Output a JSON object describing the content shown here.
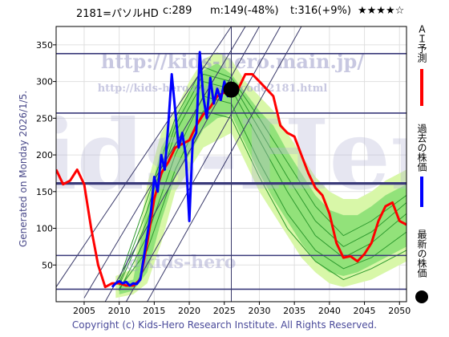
{
  "header": {
    "code_name": "2181=パソルHD",
    "current": "c:289",
    "min": "m:149(-48%)",
    "target": "t:316(+9%)",
    "stars": "★★★★☆"
  },
  "y_axis_label": "Generated on Monday 2026/1/5.",
  "footer": "Copyright (c) Kids-Hero Research Institute. All Rights Reserved.",
  "watermarks": {
    "main_url": "http://kids-hero.main.jp/",
    "code_url": "http://kids-hero.main.jp/code2181.html",
    "big_text": "Kids-Hero",
    "bottom_text": "@kids-hero"
  },
  "legend": [
    {
      "label": "ＡＩ予測",
      "color": "#ff0000"
    },
    {
      "label": "過去の株価",
      "color": "#0000ff"
    },
    {
      "label": "最新の株価",
      "color": "#000000"
    }
  ],
  "chart_data": {
    "type": "line",
    "title": "",
    "xlabel": "",
    "ylabel": "",
    "xlim": [
      2001,
      2051
    ],
    "ylim": [
      0,
      375
    ],
    "x_ticks": [
      2005,
      2010,
      2015,
      2020,
      2025,
      2030,
      2035,
      2040,
      2045,
      2050
    ],
    "y_ticks": [
      0,
      50,
      100,
      150,
      200,
      250,
      300,
      350
    ],
    "horizontal_lines": [
      17,
      63,
      162,
      257,
      338
    ],
    "horizontal_line_bold": 161,
    "vertical_line_x": 2026,
    "latest_point": {
      "x": 2026,
      "y": 289
    },
    "band_outer": [
      [
        2009.5,
        35,
        5
      ],
      [
        2012,
        45,
        10
      ],
      [
        2014,
        160,
        25
      ],
      [
        2016,
        230,
        80
      ],
      [
        2018,
        260,
        150
      ],
      [
        2020,
        300,
        180
      ],
      [
        2022,
        330,
        210
      ],
      [
        2024,
        340,
        220
      ],
      [
        2026,
        330,
        230
      ],
      [
        2028,
        300,
        190
      ],
      [
        2030,
        280,
        150
      ],
      [
        2032,
        260,
        120
      ],
      [
        2034,
        230,
        90
      ],
      [
        2036,
        200,
        60
      ],
      [
        2038,
        170,
        40
      ],
      [
        2040,
        150,
        25
      ],
      [
        2042,
        140,
        20
      ],
      [
        2044,
        140,
        25
      ],
      [
        2046,
        150,
        30
      ],
      [
        2048,
        165,
        40
      ],
      [
        2051,
        180,
        55
      ]
    ],
    "band_inner": [
      [
        2010,
        25,
        10
      ],
      [
        2012,
        30,
        15
      ],
      [
        2014,
        130,
        40
      ],
      [
        2016,
        210,
        110
      ],
      [
        2018,
        245,
        170
      ],
      [
        2020,
        285,
        200
      ],
      [
        2022,
        315,
        235
      ],
      [
        2024,
        325,
        250
      ],
      [
        2026,
        310,
        255
      ],
      [
        2028,
        285,
        215
      ],
      [
        2030,
        260,
        175
      ],
      [
        2032,
        240,
        140
      ],
      [
        2034,
        205,
        110
      ],
      [
        2036,
        175,
        80
      ],
      [
        2038,
        145,
        55
      ],
      [
        2040,
        125,
        40
      ],
      [
        2042,
        118,
        35
      ],
      [
        2044,
        118,
        40
      ],
      [
        2046,
        130,
        50
      ],
      [
        2048,
        145,
        60
      ],
      [
        2051,
        160,
        75
      ]
    ],
    "series": [
      {
        "name": "ＡＩ予測",
        "color": "#ff0000",
        "x": [
          2001,
          2002,
          2003,
          2004,
          2005,
          2006,
          2007,
          2008,
          2009,
          2010,
          2011,
          2012,
          2013,
          2014,
          2015,
          2016,
          2017,
          2018,
          2019,
          2020,
          2021,
          2022,
          2023,
          2024,
          2025,
          2026,
          2027,
          2028,
          2029,
          2030,
          2031,
          2032,
          2033,
          2034,
          2035,
          2036,
          2037,
          2038,
          2039,
          2040,
          2041,
          2042,
          2043,
          2044,
          2045,
          2046,
          2047,
          2048,
          2049,
          2050,
          2051
        ],
        "values": [
          180,
          160,
          165,
          180,
          160,
          100,
          50,
          20,
          25,
          25,
          22,
          22,
          30,
          80,
          140,
          175,
          190,
          210,
          215,
          220,
          240,
          255,
          265,
          280,
          285,
          285,
          290,
          310,
          310,
          300,
          290,
          280,
          240,
          230,
          225,
          200,
          175,
          155,
          145,
          120,
          80,
          60,
          62,
          55,
          65,
          80,
          110,
          130,
          135,
          110,
          105
        ]
      },
      {
        "name": "過去の株価",
        "color": "#0000ff",
        "x": [
          2009,
          2009.5,
          2010,
          2010.5,
          2011,
          2011.5,
          2012,
          2012.5,
          2013,
          2013.5,
          2014,
          2014.5,
          2015,
          2015.5,
          2016,
          2016.5,
          2017,
          2017.5,
          2018,
          2018.5,
          2019,
          2019.5,
          2020,
          2020.5,
          2021,
          2021.5,
          2022,
          2022.5,
          2023,
          2023.5,
          2024,
          2024.5,
          2025,
          2025.5,
          2026
        ],
        "values": [
          20,
          25,
          28,
          25,
          27,
          22,
          25,
          24,
          30,
          60,
          90,
          120,
          170,
          150,
          200,
          180,
          240,
          310,
          260,
          210,
          230,
          200,
          110,
          220,
          230,
          340,
          280,
          250,
          305,
          270,
          290,
          275,
          300,
          280,
          289
        ]
      }
    ],
    "green_paths": [
      {
        "x": [
          2010,
          2014,
          2018,
          2022,
          2026,
          2030,
          2034,
          2038,
          2042,
          2046,
          2051
        ],
        "values": [
          22,
          110,
          230,
          300,
          290,
          220,
          150,
          90,
          60,
          80,
          120
        ]
      },
      {
        "x": [
          2010,
          2014,
          2018,
          2022,
          2026,
          2030,
          2034,
          2038,
          2042,
          2046,
          2051
        ],
        "values": [
          15,
          90,
          200,
          280,
          270,
          190,
          120,
          70,
          45,
          60,
          95
        ]
      },
      {
        "x": [
          2010,
          2014,
          2018,
          2022,
          2026,
          2030,
          2034,
          2038,
          2042,
          2046,
          2051
        ],
        "values": [
          30,
          140,
          250,
          320,
          305,
          250,
          190,
          130,
          90,
          110,
          145
        ]
      },
      {
        "x": [
          2010,
          2014,
          2018,
          2022,
          2026,
          2030,
          2034,
          2038,
          2042,
          2046,
          2051
        ],
        "values": [
          18,
          70,
          180,
          260,
          250,
          170,
          100,
          55,
          30,
          45,
          70
        ]
      },
      {
        "x": [
          2010,
          2014,
          2018,
          2022,
          2026,
          2030,
          2034,
          2038,
          2042,
          2046,
          2051
        ],
        "values": [
          25,
          125,
          240,
          310,
          300,
          235,
          170,
          110,
          75,
          95,
          135
        ]
      }
    ],
    "diagonal_lines": [
      {
        "from": [
          2001,
          20
        ],
        "to": [
          2026,
          375
        ]
      },
      {
        "from": [
          2005,
          5
        ],
        "to": [
          2028,
          375
        ]
      },
      {
        "from": [
          2008,
          0
        ],
        "to": [
          2030,
          375
        ]
      },
      {
        "from": [
          2011,
          0
        ],
        "to": [
          2033,
          375
        ]
      },
      {
        "from": [
          2014,
          0
        ],
        "to": [
          2036,
          375
        ]
      }
    ]
  }
}
